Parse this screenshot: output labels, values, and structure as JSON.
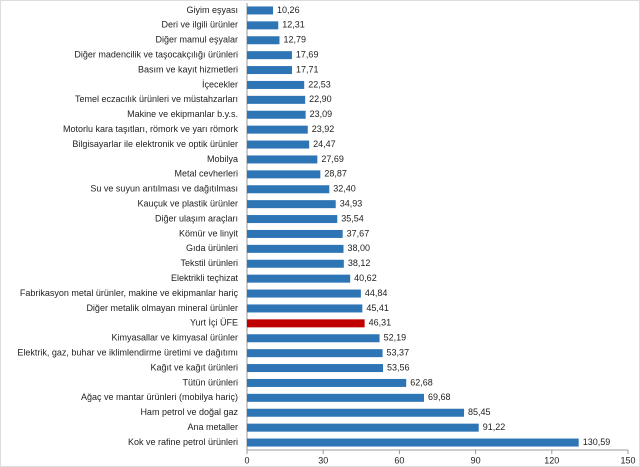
{
  "chart_data": {
    "type": "bar",
    "orientation": "horizontal",
    "categories": [
      "Giyim eşyası",
      "Deri ve ilgili ürünler",
      "Diğer mamul eşyalar",
      "Diğer madencilik ve taşocakçılığı ürünleri",
      "Basım ve kayıt hizmetleri",
      "İçecekler",
      "Temel eczacılık ürünleri ve müstahzarları",
      "Makine ve ekipmanlar b.y.s.",
      "Motorlu kara taşıtları, römork ve yarı römork",
      "Bilgisayarlar ile elektronik ve optik ürünler",
      "Mobilya",
      "Metal cevherleri",
      "Su ve suyun arıtılması ve dağıtılması",
      "Kauçuk ve plastik ürünler",
      "Diğer ulaşım araçları",
      "Kömür ve linyit",
      "Gıda ürünleri",
      "Tekstil ürünleri",
      "Elektrikli teçhizat",
      "Fabrikasyon metal ürünler, makine ve ekipmanlar hariç",
      "Diğer metalik olmayan mineral ürünler",
      "Yurt İçi ÜFE",
      "Kimyasallar ve kimyasal ürünler",
      "Elektrik, gaz, buhar ve iklimlendirme üretimi ve dağıtımı",
      "Kağıt ve kağıt ürünleri",
      "Tütün ürünleri",
      "Ağaç ve mantar ürünleri (mobilya hariç)",
      "Ham petrol ve doğal gaz",
      "Ana metaller",
      "Kok ve rafine petrol ürünleri"
    ],
    "values": [
      10.26,
      12.31,
      12.79,
      17.69,
      17.71,
      22.53,
      22.9,
      23.09,
      23.92,
      24.47,
      27.69,
      28.87,
      32.4,
      34.93,
      35.54,
      37.67,
      38.0,
      38.12,
      40.62,
      44.84,
      45.41,
      46.31,
      52.19,
      53.37,
      53.56,
      62.68,
      69.68,
      85.45,
      91.22,
      130.59
    ],
    "value_labels": [
      "10,26",
      "12,31",
      "12,79",
      "17,69",
      "17,71",
      "22,53",
      "22,90",
      "23,09",
      "23,92",
      "24,47",
      "27,69",
      "28,87",
      "32,40",
      "34,93",
      "35,54",
      "37,67",
      "38,00",
      "38,12",
      "40,62",
      "44,84",
      "45,41",
      "46,31",
      "52,19",
      "53,37",
      "53,56",
      "62,68",
      "69,68",
      "85,45",
      "91,22",
      "130,59"
    ],
    "colors": [
      "#2e75b6",
      "#2e75b6",
      "#2e75b6",
      "#2e75b6",
      "#2e75b6",
      "#2e75b6",
      "#2e75b6",
      "#2e75b6",
      "#2e75b6",
      "#2e75b6",
      "#2e75b6",
      "#2e75b6",
      "#2e75b6",
      "#2e75b6",
      "#2e75b6",
      "#2e75b6",
      "#2e75b6",
      "#2e75b6",
      "#2e75b6",
      "#2e75b6",
      "#2e75b6",
      "#c00000",
      "#2e75b6",
      "#2e75b6",
      "#2e75b6",
      "#2e75b6",
      "#2e75b6",
      "#2e75b6",
      "#2e75b6",
      "#2e75b6"
    ],
    "xlim": [
      0,
      150
    ],
    "xticks": [
      0,
      30,
      60,
      90,
      120,
      150
    ],
    "grid": false
  }
}
